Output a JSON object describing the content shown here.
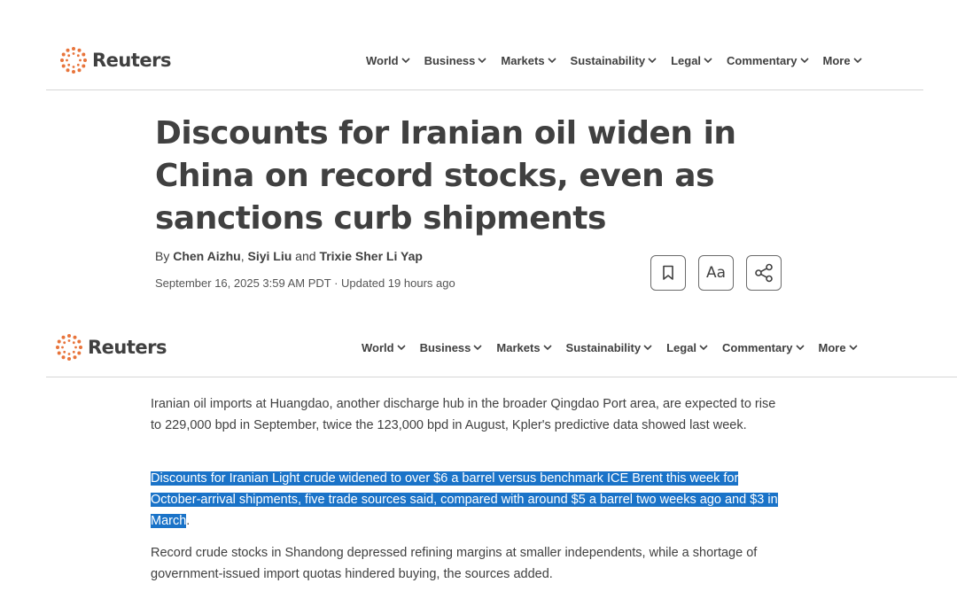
{
  "brand": {
    "name": "Reuters"
  },
  "nav": {
    "items": [
      {
        "label": "World"
      },
      {
        "label": "Business"
      },
      {
        "label": "Markets"
      },
      {
        "label": "Sustainability"
      },
      {
        "label": "Legal"
      },
      {
        "label": "Commentary"
      },
      {
        "label": "More"
      }
    ]
  },
  "article": {
    "headline": "Discounts for Iranian oil widen in China on record stocks, even as sanctions curb shipments",
    "byline_prefix": "By ",
    "authors": [
      "Chen Aizhu",
      "Siyi Liu",
      "Trixie Sher Li Yap"
    ],
    "byline_sep1": ", ",
    "byline_sep2": " and ",
    "dateline": "September 16, 2025 3:59 AM PDT · Updated 19 hours ago",
    "tools": {
      "bookmark_icon": "bookmark-icon",
      "text_size_label": "Aa",
      "share_icon": "share-icon"
    },
    "paragraphs": {
      "p1": "Iranian oil imports at Huangdao, another discharge hub in the broader Qingdao Port area, are expected to rise to 229,000 bpd in September, twice the 123,000 bpd in August, Kpler's predictive data showed last week.",
      "p2_selected": "Discounts for Iranian Light crude widened to over $6 a barrel versus benchmark ICE Brent this week for October-arrival shipments, five trade sources said, compared with around $5 a barrel two weeks ago and $3 in March",
      "p2_tail": ".",
      "p3": "Record crude stocks in Shandong depressed refining margins at smaller independents, while a shortage of government-issued import quotas hindered buying, the sources added."
    }
  },
  "colors": {
    "text": "#404040",
    "logo_orange": "#e8743b",
    "selection": "#1a73c8"
  }
}
